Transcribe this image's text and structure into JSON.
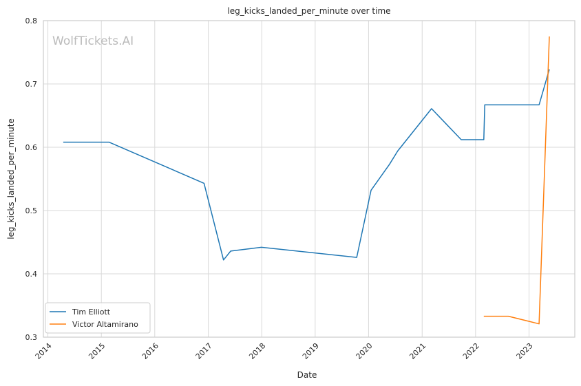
{
  "watermark": "WolfTickets.AI",
  "chart_data": {
    "type": "line",
    "title": "leg_kicks_landed_per_minute over time",
    "xlabel": "Date",
    "ylabel": "leg_kicks_landed_per_minute",
    "xlim": [
      "2013-12-01",
      "2023-11-10"
    ],
    "ylim": [
      0.3,
      0.8
    ],
    "x_ticks": [
      "2014",
      "2015",
      "2016",
      "2017",
      "2018",
      "2019",
      "2020",
      "2021",
      "2022",
      "2023"
    ],
    "y_ticks": [
      "0.3",
      "0.4",
      "0.5",
      "0.6",
      "0.7",
      "0.8"
    ],
    "grid": true,
    "legend_position": "lower-left",
    "series": [
      {
        "name": "Tim Elliott",
        "color": "#1f77b4",
        "x": [
          "2014-04-16",
          "2015-02-22",
          "2016-12-03",
          "2017-04-15",
          "2017-06-03",
          "2017-12-30",
          "2019-10-12",
          "2020-01-18",
          "2020-05-23",
          "2020-07-18",
          "2021-03-06",
          "2021-09-25",
          "2022-02-26",
          "2022-03-05",
          "2023-03-11",
          "2023-05-20"
        ],
        "values": [
          0.608,
          0.608,
          0.543,
          0.422,
          0.436,
          0.442,
          0.426,
          0.532,
          0.573,
          0.594,
          0.661,
          0.612,
          0.612,
          0.667,
          0.667,
          0.723
        ]
      },
      {
        "name": "Victor Altamirano",
        "color": "#ff7f0e",
        "x": [
          "2022-02-26",
          "2022-08-13",
          "2023-03-11",
          "2023-05-20"
        ],
        "values": [
          0.333,
          0.333,
          0.321,
          0.775
        ]
      }
    ]
  }
}
